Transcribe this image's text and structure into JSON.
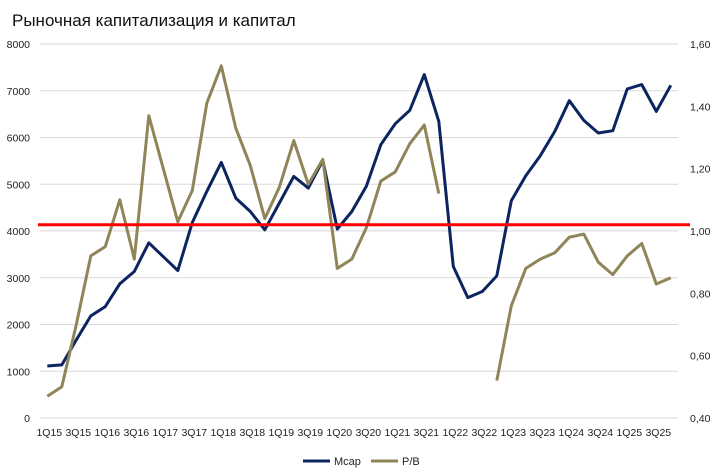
{
  "chart_data": {
    "type": "line",
    "title": "Рыночная капитализация и капитал",
    "xlabel": "",
    "ylabel": "",
    "x": [
      "1Q15",
      "2Q15",
      "3Q15",
      "4Q15",
      "1Q16",
      "2Q16",
      "3Q16",
      "4Q16",
      "1Q17",
      "2Q17",
      "3Q17",
      "4Q17",
      "1Q18",
      "2Q18",
      "3Q18",
      "4Q18",
      "1Q19",
      "2Q19",
      "3Q19",
      "4Q19",
      "1Q20",
      "2Q20",
      "3Q20",
      "4Q20",
      "1Q21",
      "2Q21",
      "3Q21",
      "4Q21",
      "1Q22",
      "2Q22",
      "3Q22",
      "4Q22",
      "1Q23",
      "2Q23",
      "3Q23",
      "4Q23",
      "1Q24",
      "2Q24",
      "3Q24",
      "4Q24",
      "1Q25",
      "2Q25",
      "3Q25",
      "4Q25"
    ],
    "x_tick_labels": [
      "1Q15",
      "3Q15",
      "1Q16",
      "3Q16",
      "1Q17",
      "3Q17",
      "1Q18",
      "3Q18",
      "1Q19",
      "3Q19",
      "1Q20",
      "3Q20",
      "1Q21",
      "3Q21",
      "1Q22",
      "3Q22",
      "1Q23",
      "3Q23",
      "1Q24",
      "3Q24",
      "1Q25",
      "3Q25"
    ],
    "y_left": {
      "ylim": [
        0,
        8000
      ],
      "ticks": [
        "0",
        "1000",
        "2000",
        "3000",
        "4000",
        "5000",
        "6000",
        "7000",
        "8000"
      ]
    },
    "y_right": {
      "ylim": [
        0.4,
        1.6
      ],
      "ticks": [
        "0,40",
        "0,60",
        "0,80",
        "1,00",
        "1,20",
        "1,40",
        "1,60"
      ]
    },
    "grid": true,
    "legend_position": "bottom",
    "series": [
      {
        "name": "Mcap",
        "axis": "left",
        "color": "#0c2460",
        "values": [
          1113,
          1135,
          1670,
          2184,
          2383,
          2870,
          3133,
          3747,
          3450,
          3154,
          4182,
          4846,
          5467,
          4704,
          4418,
          4026,
          4597,
          5168,
          4918,
          5510,
          4040,
          4418,
          4953,
          5846,
          6296,
          6581,
          7345,
          6345,
          3240,
          2576,
          2705,
          3040,
          4647,
          5182,
          5610,
          6131,
          6788,
          6366,
          6096,
          6146,
          7039,
          7131,
          6559,
          7116
        ]
      },
      {
        "name": "P/B",
        "axis": "right",
        "color": "#8f8558",
        "values": [
          0.47,
          0.5,
          0.7,
          0.92,
          0.95,
          1.1,
          0.91,
          1.37,
          1.2,
          1.03,
          1.13,
          1.41,
          1.53,
          1.33,
          1.21,
          1.04,
          1.14,
          1.29,
          1.15,
          1.23,
          0.88,
          0.91,
          1.01,
          1.16,
          1.19,
          1.28,
          1.34,
          1.12,
          null,
          null,
          null,
          0.52,
          0.76,
          0.88,
          0.91,
          0.93,
          0.98,
          0.99,
          0.9,
          0.86,
          0.92,
          0.96,
          0.83,
          0.85
        ]
      }
    ],
    "reference_line": {
      "axis": "right",
      "value": 1.02,
      "color": "#ff0000"
    }
  }
}
